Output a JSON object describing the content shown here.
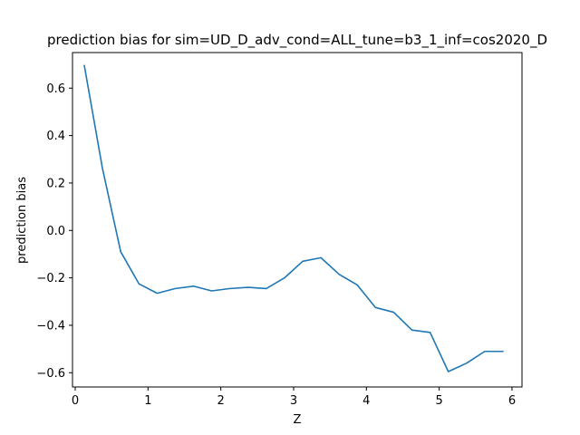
{
  "chart_data": {
    "type": "line",
    "title": "prediction bias for sim=UD_D_adv_cond=ALL_tune=b3_1_inf=cos2020_D",
    "xlabel": "Z",
    "ylabel": "prediction bias",
    "xlim": [
      -0.0375,
      6.1375
    ],
    "ylim": [
      -0.66,
      0.75
    ],
    "xticks": [
      0,
      1,
      2,
      3,
      4,
      5,
      6
    ],
    "xtick_labels": [
      "0",
      "1",
      "2",
      "3",
      "4",
      "5",
      "6"
    ],
    "yticks": [
      -0.6,
      -0.4,
      -0.2,
      0.0,
      0.2,
      0.4,
      0.6
    ],
    "ytick_labels": [
      "−0.6",
      "−0.4",
      "−0.2",
      "0.0",
      "0.2",
      "0.4",
      "0.6"
    ],
    "grid": false,
    "series": [
      {
        "color": "#1f77b4",
        "x": [
          0.125,
          0.375,
          0.625,
          0.875,
          1.125,
          1.375,
          1.625,
          1.875,
          2.125,
          2.375,
          2.625,
          2.875,
          3.125,
          3.375,
          3.625,
          3.875,
          4.125,
          4.375,
          4.625,
          4.875,
          5.125,
          5.375,
          5.625,
          5.875
        ],
        "y": [
          0.695,
          0.26,
          -0.09,
          -0.225,
          -0.265,
          -0.245,
          -0.235,
          -0.255,
          -0.245,
          -0.24,
          -0.245,
          -0.2,
          -0.13,
          -0.115,
          -0.185,
          -0.23,
          -0.325,
          -0.345,
          -0.42,
          -0.43,
          -0.595,
          -0.56,
          -0.51,
          -0.51
        ]
      }
    ]
  }
}
